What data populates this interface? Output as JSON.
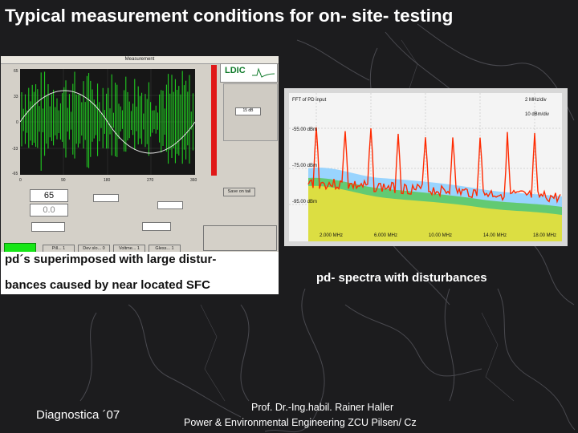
{
  "slide": {
    "title": "Typical measurement conditions for on- site- testing",
    "footer_left": "Diagnostica ´07",
    "footer_author": "Prof. Dr.-Ing.habil. Rainer Haller",
    "footer_institution": "Power & Environmental Engineering ZCU Pilsen/ Cz"
  },
  "left_figure": {
    "caption_line1": "pd´s superimposed with large distur-",
    "caption_line2": "bances caused by near located SFC",
    "logo": "LDIC",
    "charge_value": "65",
    "voltage_value": "0.0"
  },
  "right_figure": {
    "caption": "pd- spectra with disturbances",
    "header_left": "FFT of PD input",
    "header_right_1": "2 MHz/div",
    "header_right_2": "10 dBm/div",
    "ref_labels": [
      "-55.00 dBm",
      "-75.00 dBm",
      "-95.00 dBm"
    ],
    "x_labels": [
      "2.000 MHz",
      "6.000 MHz",
      "10.00 MHz",
      "14.00 MHz",
      "18.00 MHz"
    ]
  },
  "colors": {
    "background": "#1c1c1e",
    "scope_bg": "#1a1a1a",
    "pd_trace": "#22dd22",
    "spectrum_peak": "#ff2a00"
  }
}
